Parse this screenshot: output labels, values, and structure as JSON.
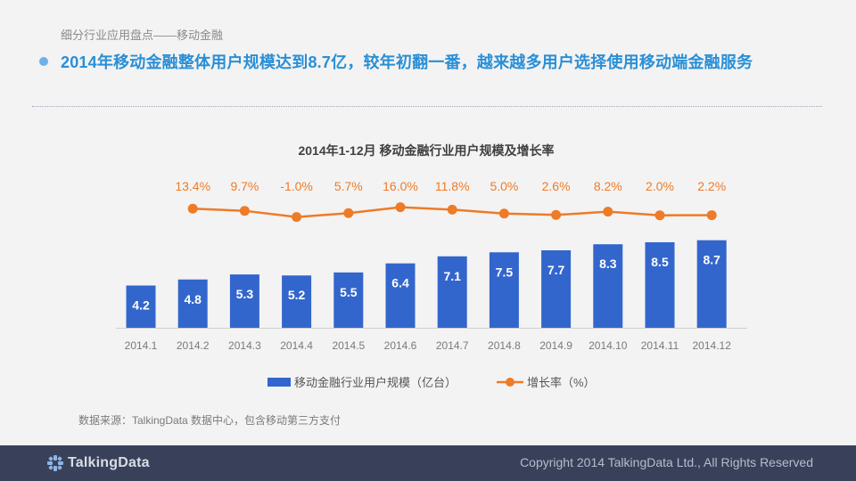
{
  "header": {
    "subtitle": "细分行业应用盘点——移动金融",
    "headline": "2014年移动金融整体用户规模达到8.7亿，较年初翻一番，越来越多用户选择使用移动端金融服务"
  },
  "colors": {
    "bar": "#3366cc",
    "line": "#ee7b27",
    "headline": "#2a8fd6"
  },
  "chart_data": {
    "type": "bar+line",
    "title": "2014年1-12月 移动金融行业用户规模及增长率",
    "categories": [
      "2014.1",
      "2014.2",
      "2014.3",
      "2014.4",
      "2014.5",
      "2014.6",
      "2014.7",
      "2014.8",
      "2014.9",
      "2014.10",
      "2014.11",
      "2014.12"
    ],
    "series": [
      {
        "name": "移动金融行业用户规模（亿台）",
        "type": "bar",
        "values": [
          4.2,
          4.8,
          5.3,
          5.2,
          5.5,
          6.4,
          7.1,
          7.5,
          7.7,
          8.3,
          8.5,
          8.7
        ],
        "labels": [
          "4.2",
          "4.8",
          "5.3",
          "5.2",
          "5.5",
          "6.4",
          "7.1",
          "7.5",
          "7.7",
          "8.3",
          "8.5",
          "8.7"
        ]
      },
      {
        "name": "增长率（%）",
        "type": "line",
        "values": [
          null,
          13.4,
          9.7,
          -1.0,
          5.7,
          16.0,
          11.8,
          5.0,
          2.6,
          8.2,
          2.0,
          2.2
        ],
        "labels": [
          null,
          "13.4%",
          "9.7%",
          "-1.0%",
          "5.7%",
          "16.0%",
          "11.8%",
          "5.0%",
          "2.6%",
          "8.2%",
          "2.0%",
          "2.2%"
        ]
      }
    ],
    "legend_position": "bottom"
  },
  "source": "数据来源：TalkingData 数据中心，包含移动第三方支付",
  "footer": {
    "brand": "TalkingData",
    "copyright": "Copyright 2014 TalkingData Ltd., All Rights Reserved"
  }
}
